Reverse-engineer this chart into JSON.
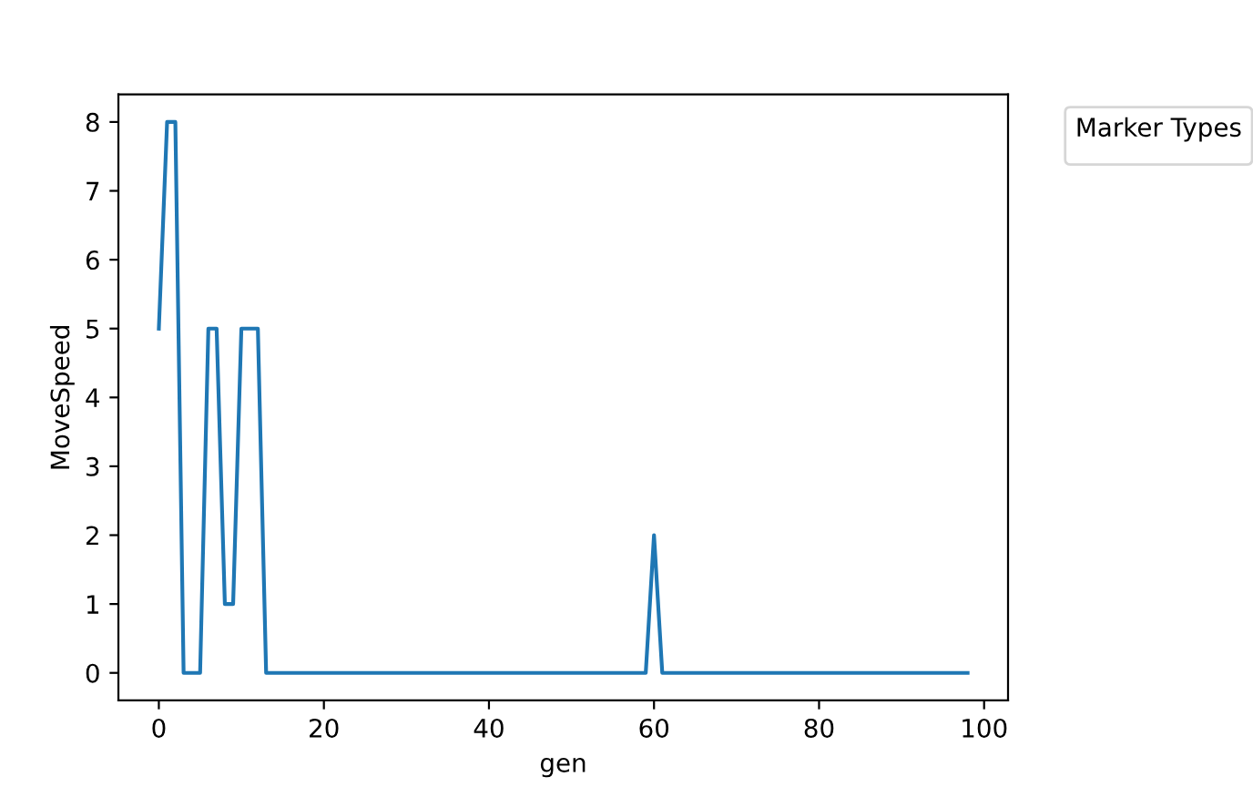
{
  "chart_data": {
    "type": "line",
    "xlabel": "gen",
    "ylabel": "MoveSpeed",
    "legend_title": "Marker Types",
    "x": [
      0,
      1,
      2,
      3,
      4,
      5,
      6,
      7,
      8,
      9,
      10,
      11,
      12,
      13,
      14,
      15,
      16,
      17,
      18,
      19,
      20,
      21,
      22,
      23,
      24,
      25,
      26,
      27,
      28,
      29,
      30,
      31,
      32,
      33,
      34,
      35,
      36,
      37,
      38,
      39,
      40,
      41,
      42,
      43,
      44,
      45,
      46,
      47,
      48,
      49,
      50,
      51,
      52,
      53,
      54,
      55,
      56,
      57,
      58,
      59,
      60,
      61,
      62,
      63,
      64,
      65,
      66,
      67,
      68,
      69,
      70,
      71,
      72,
      73,
      74,
      75,
      76,
      77,
      78,
      79,
      80,
      81,
      82,
      83,
      84,
      85,
      86,
      87,
      88,
      89,
      90,
      91,
      92,
      93,
      94,
      95,
      96,
      97,
      98
    ],
    "series": [
      {
        "color": "#1f77b4",
        "values": [
          5,
          8,
          8,
          0,
          0,
          0,
          5,
          5,
          1,
          1,
          5,
          5,
          5,
          0,
          0,
          0,
          0,
          0,
          0,
          0,
          0,
          0,
          0,
          0,
          0,
          0,
          0,
          0,
          0,
          0,
          0,
          0,
          0,
          0,
          0,
          0,
          0,
          0,
          0,
          0,
          0,
          0,
          0,
          0,
          0,
          0,
          0,
          0,
          0,
          0,
          0,
          0,
          0,
          0,
          0,
          0,
          0,
          0,
          0,
          0,
          2,
          0,
          0,
          0,
          0,
          0,
          0,
          0,
          0,
          0,
          0,
          0,
          0,
          0,
          0,
          0,
          0,
          0,
          0,
          0,
          0,
          0,
          0,
          0,
          0,
          0,
          0,
          0,
          0,
          0,
          0,
          0,
          0,
          0,
          0,
          0,
          0,
          0,
          0
        ]
      }
    ],
    "xlim": [
      -4.9,
      102.9
    ],
    "xticks": [
      0,
      20,
      40,
      60,
      80,
      100
    ],
    "ylim": [
      -0.4,
      8.4
    ],
    "yticks": [
      0,
      1,
      2,
      3,
      4,
      5,
      6,
      7,
      8
    ]
  }
}
